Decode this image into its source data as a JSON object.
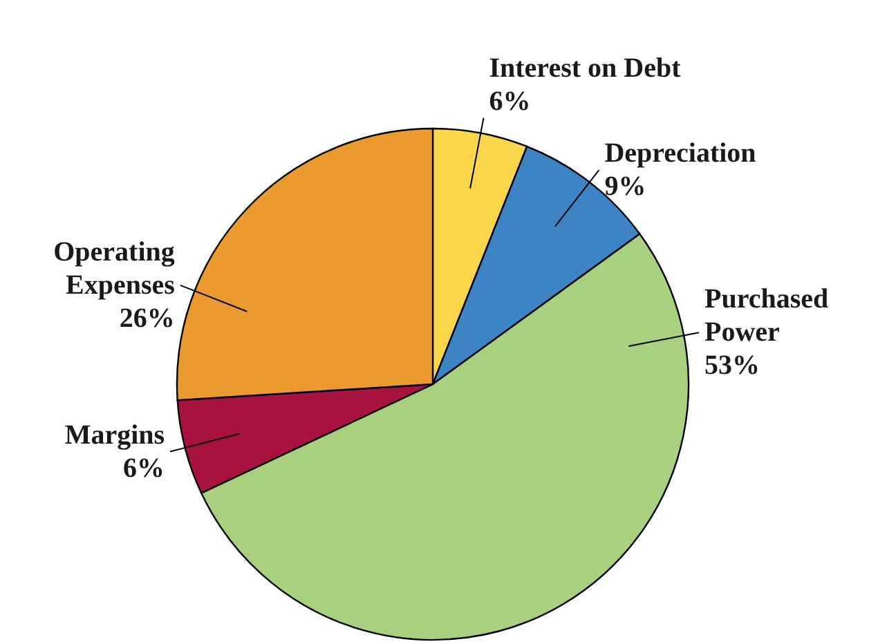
{
  "chart_data": {
    "type": "pie",
    "categories": [
      "Interest on Debt",
      "Depreciation",
      "Purchased Power",
      "Margins",
      "Operating Expenses"
    ],
    "values": [
      6,
      9,
      53,
      6,
      26
    ],
    "value_labels": [
      "6%",
      "9%",
      "53%",
      "6%",
      "26%"
    ],
    "colors": [
      "#f9d64a",
      "#3d84c4",
      "#a9d07e",
      "#a8123f",
      "#eb9a2f"
    ]
  }
}
